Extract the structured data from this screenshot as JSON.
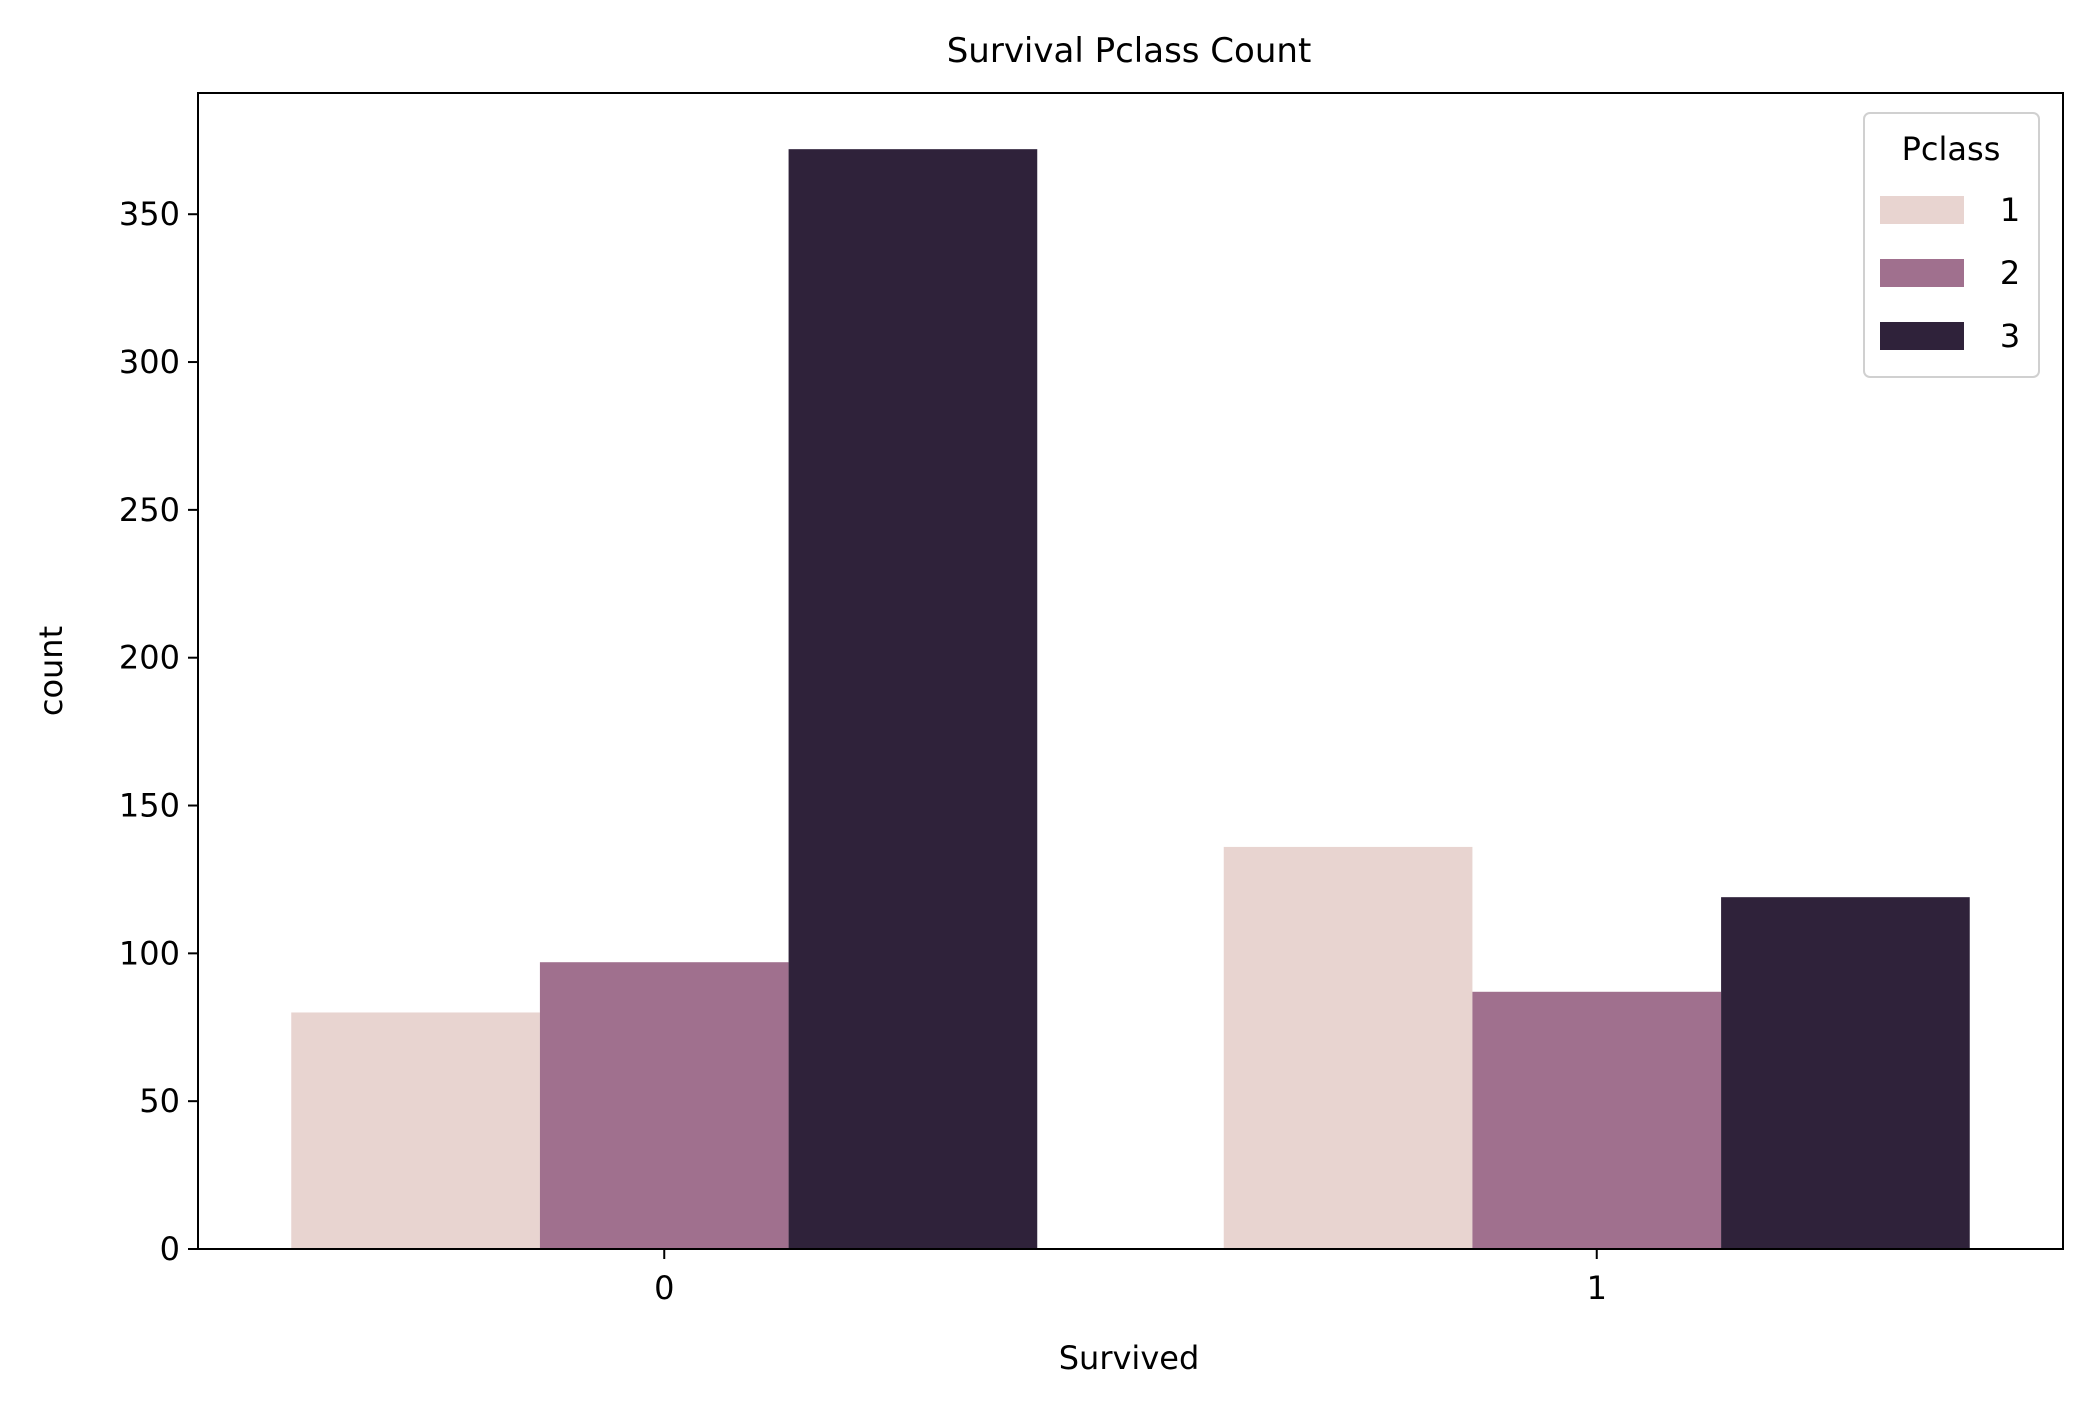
{
  "chart_data": {
    "type": "bar",
    "title": "Survival Pclass Count",
    "xlabel": "Survived",
    "ylabel": "count",
    "categories": [
      "0",
      "1"
    ],
    "series": [
      {
        "name": "1",
        "values": [
          80,
          136
        ]
      },
      {
        "name": "2",
        "values": [
          97,
          87
        ]
      },
      {
        "name": "3",
        "values": [
          372,
          119
        ]
      }
    ],
    "ylim": [
      0,
      391
    ],
    "yticks": [
      "0",
      "50",
      "100",
      "150",
      "200",
      "250",
      "300",
      "350"
    ],
    "legend": {
      "title": "Pclass",
      "placement": "top-right"
    },
    "grid": false,
    "colors": {
      "series": [
        "#e8d4d0",
        "#a0708e",
        "#2f223a"
      ],
      "axis": "#000000",
      "background": "#ffffff"
    }
  }
}
